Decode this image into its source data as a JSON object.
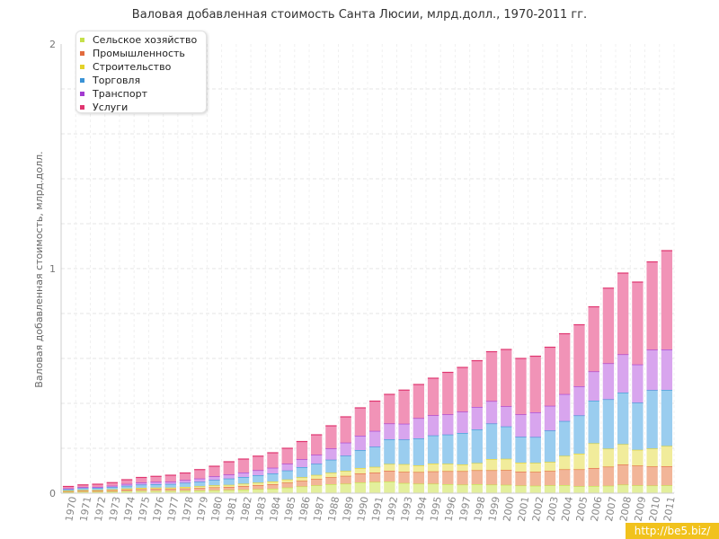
{
  "title": "Валовая добавленная стоимость Санта Люсии, млрд.долл., 1970-2011 гг.",
  "watermark": "http://be5.biz/",
  "chart_data": {
    "type": "bar",
    "stacked": true,
    "title": "Валовая добавленная стоимость Санта Люсии, млрд.долл., 1970-2011 гг.",
    "xlabel": "",
    "ylabel": "Валовая добавленная стоимость, млрд.долл.",
    "ylim": [
      0,
      2
    ],
    "yticks": [
      0,
      1,
      2
    ],
    "grid": true,
    "legend_position": "top-left",
    "categories": [
      "1970",
      "1971",
      "1972",
      "1973",
      "1974",
      "1975",
      "1976",
      "1977",
      "1978",
      "1979",
      "1980",
      "1981",
      "1982",
      "1983",
      "1984",
      "1985",
      "1986",
      "1987",
      "1988",
      "1989",
      "1990",
      "1991",
      "1992",
      "1993",
      "1994",
      "1995",
      "1996",
      "1997",
      "1998",
      "1999",
      "2000",
      "2001",
      "2002",
      "2003",
      "2004",
      "2005",
      "2006",
      "2007",
      "2008",
      "2009",
      "2010",
      "2011"
    ],
    "series": [
      {
        "name": "Сельское хозяйство",
        "color": "#c5e04a",
        "fill": "#e3ef9c",
        "values": [
          0.005,
          0.006,
          0.006,
          0.007,
          0.009,
          0.01,
          0.01,
          0.01,
          0.011,
          0.012,
          0.013,
          0.014,
          0.016,
          0.018,
          0.02,
          0.025,
          0.03,
          0.035,
          0.04,
          0.042,
          0.048,
          0.05,
          0.052,
          0.045,
          0.042,
          0.042,
          0.04,
          0.038,
          0.04,
          0.038,
          0.037,
          0.034,
          0.033,
          0.035,
          0.036,
          0.031,
          0.032,
          0.033,
          0.038,
          0.035,
          0.034,
          0.035
        ]
      },
      {
        "name": "Промышленность",
        "color": "#e26b3e",
        "fill": "#f2b598",
        "values": [
          0.004,
          0.005,
          0.005,
          0.006,
          0.007,
          0.008,
          0.009,
          0.009,
          0.01,
          0.011,
          0.013,
          0.014,
          0.016,
          0.018,
          0.02,
          0.022,
          0.025,
          0.028,
          0.031,
          0.035,
          0.04,
          0.042,
          0.048,
          0.05,
          0.052,
          0.055,
          0.058,
          0.06,
          0.062,
          0.064,
          0.066,
          0.062,
          0.062,
          0.064,
          0.07,
          0.075,
          0.08,
          0.085,
          0.09,
          0.088,
          0.085,
          0.085
        ]
      },
      {
        "name": "Строительство",
        "color": "#e3d22a",
        "fill": "#f1ec9b",
        "values": [
          0.002,
          0.003,
          0.003,
          0.004,
          0.005,
          0.006,
          0.006,
          0.006,
          0.007,
          0.008,
          0.009,
          0.009,
          0.01,
          0.011,
          0.012,
          0.014,
          0.016,
          0.018,
          0.02,
          0.022,
          0.024,
          0.025,
          0.03,
          0.034,
          0.03,
          0.035,
          0.033,
          0.03,
          0.032,
          0.05,
          0.05,
          0.04,
          0.04,
          0.04,
          0.06,
          0.07,
          0.11,
          0.08,
          0.09,
          0.07,
          0.08,
          0.09
        ]
      },
      {
        "name": "Торговля",
        "color": "#3a93d6",
        "fill": "#9acdef",
        "values": [
          0.006,
          0.008,
          0.009,
          0.01,
          0.012,
          0.014,
          0.015,
          0.016,
          0.018,
          0.02,
          0.024,
          0.028,
          0.03,
          0.033,
          0.036,
          0.04,
          0.045,
          0.05,
          0.058,
          0.068,
          0.08,
          0.09,
          0.11,
          0.11,
          0.12,
          0.125,
          0.13,
          0.14,
          0.15,
          0.158,
          0.144,
          0.115,
          0.115,
          0.14,
          0.155,
          0.17,
          0.19,
          0.22,
          0.23,
          0.21,
          0.26,
          0.25
        ]
      },
      {
        "name": "Транспорт",
        "color": "#a33ad0",
        "fill": "#d8a5ee",
        "values": [
          0.004,
          0.005,
          0.005,
          0.006,
          0.008,
          0.009,
          0.01,
          0.01,
          0.012,
          0.014,
          0.016,
          0.018,
          0.02,
          0.022,
          0.025,
          0.03,
          0.035,
          0.04,
          0.05,
          0.058,
          0.064,
          0.07,
          0.07,
          0.07,
          0.09,
          0.09,
          0.09,
          0.095,
          0.1,
          0.1,
          0.09,
          0.1,
          0.11,
          0.11,
          0.12,
          0.13,
          0.13,
          0.16,
          0.17,
          0.17,
          0.18,
          0.18
        ]
      },
      {
        "name": "Услуги",
        "color": "#e0356f",
        "fill": "#f193b7",
        "values": [
          0.009,
          0.01,
          0.012,
          0.014,
          0.019,
          0.023,
          0.025,
          0.029,
          0.032,
          0.04,
          0.045,
          0.057,
          0.06,
          0.063,
          0.067,
          0.069,
          0.079,
          0.089,
          0.101,
          0.115,
          0.124,
          0.133,
          0.13,
          0.15,
          0.15,
          0.165,
          0.187,
          0.197,
          0.206,
          0.22,
          0.253,
          0.249,
          0.25,
          0.261,
          0.269,
          0.274,
          0.288,
          0.335,
          0.362,
          0.367,
          0.391,
          0.44
        ]
      }
    ]
  }
}
